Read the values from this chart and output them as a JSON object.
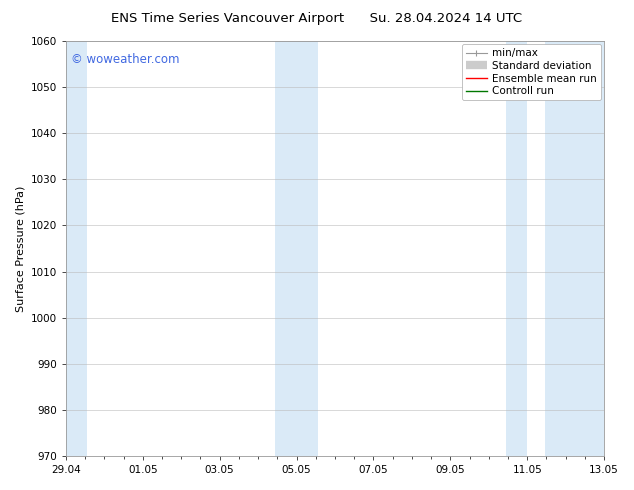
{
  "title_left": "ENS Time Series Vancouver Airport",
  "title_right": "Su. 28.04.2024 14 UTC",
  "ylabel": "Surface Pressure (hPa)",
  "ylim": [
    970,
    1060
  ],
  "yticks": [
    970,
    980,
    990,
    1000,
    1010,
    1020,
    1030,
    1040,
    1050,
    1060
  ],
  "xtick_labels": [
    "29.04",
    "01.05",
    "03.05",
    "05.05",
    "07.05",
    "09.05",
    "11.05",
    "13.05"
  ],
  "xlim_start": 0,
  "xlim_end": 14,
  "xtick_positions": [
    0,
    2,
    4,
    6,
    8,
    10,
    12,
    14
  ],
  "shaded_bands": [
    {
      "x_start": 0.0,
      "x_end": 0.55,
      "color": "#daeaf7"
    },
    {
      "x_start": 5.45,
      "x_end": 6.55,
      "color": "#daeaf7"
    },
    {
      "x_start": 11.45,
      "x_end": 12.0,
      "color": "#daeaf7"
    },
    {
      "x_start": 12.45,
      "x_end": 14.0,
      "color": "#daeaf7"
    }
  ],
  "background_color": "#ffffff",
  "plot_bg_color": "#ffffff",
  "grid_color": "#bbbbbb",
  "watermark_text": "© woweather.com",
  "watermark_color": "#4169e1",
  "legend_items": [
    {
      "label": "min/max",
      "color": "#999999",
      "lw": 1.0
    },
    {
      "label": "Standard deviation",
      "color": "#cccccc",
      "lw": 5
    },
    {
      "label": "Ensemble mean run",
      "color": "#ff0000",
      "lw": 1.0
    },
    {
      "label": "Controll run",
      "color": "#007700",
      "lw": 1.0
    }
  ],
  "title_fontsize": 9.5,
  "axis_label_fontsize": 8,
  "tick_fontsize": 7.5,
  "legend_fontsize": 7.5,
  "watermark_fontsize": 8.5
}
